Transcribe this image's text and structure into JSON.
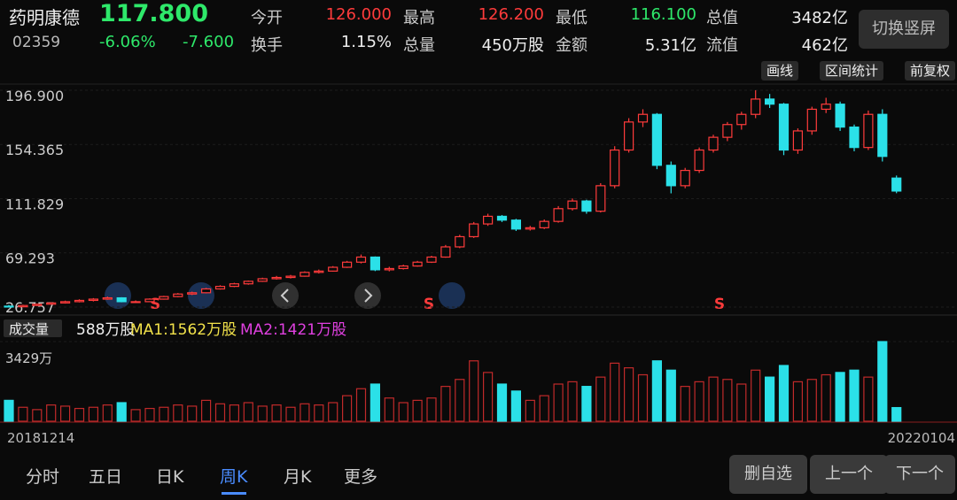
{
  "header": {
    "name": "药明康德",
    "price": "117.800",
    "code": "02359",
    "change_pct": "-6.06%",
    "change": "-7.600",
    "stats": [
      {
        "label": "今开",
        "value": "126.000"
      },
      {
        "label": "最高",
        "value": "126.200"
      },
      {
        "label": "最低",
        "value": "116.100"
      },
      {
        "label": "总值",
        "value": "3482亿"
      },
      {
        "label": "换手",
        "value": "1.15%"
      },
      {
        "label": "总量",
        "value": "450万股"
      },
      {
        "label": "金额",
        "value": "5.31亿"
      },
      {
        "label": "流值",
        "value": "462亿"
      }
    ],
    "button": "切换竖屏"
  },
  "toolbar": [
    "画线",
    "区间统计",
    "前复权"
  ],
  "chart_data": {
    "type": "candlestick",
    "up_color": "#ff3b3b",
    "down_color": "#2be0e8",
    "ylim": [
      26.757,
      196.9
    ],
    "yticks": [
      {
        "value": 26.757,
        "label": "26.757"
      },
      {
        "value": 69.293,
        "label": "69.293"
      },
      {
        "value": 111.829,
        "label": "111.829"
      },
      {
        "value": 154.365,
        "label": "154.365"
      },
      {
        "value": 196.9,
        "label": "196.900"
      }
    ],
    "x_labels": [
      "20181214",
      "20220104"
    ],
    "annotations": [
      "S",
      "S",
      "S"
    ],
    "ohlc": [
      [
        27.5,
        28.5,
        26.8,
        27
      ],
      [
        27,
        28.6,
        26.9,
        28
      ],
      [
        28,
        29.5,
        27.5,
        29
      ],
      [
        29,
        30.6,
        28.5,
        30
      ],
      [
        30,
        31.8,
        29.5,
        31
      ],
      [
        31,
        32.9,
        30.4,
        32
      ],
      [
        32,
        33.8,
        31.2,
        33
      ],
      [
        33,
        35,
        32.5,
        34
      ],
      [
        34,
        34.5,
        30.5,
        31
      ],
      [
        31,
        32,
        30,
        31
      ],
      [
        31,
        33.6,
        30.8,
        33
      ],
      [
        33,
        35.6,
        32.6,
        35
      ],
      [
        35,
        37.8,
        34.5,
        37
      ],
      [
        37,
        38.9,
        36.2,
        38
      ],
      [
        38,
        41.8,
        37.5,
        41
      ],
      [
        41,
        43.9,
        40.5,
        43
      ],
      [
        43,
        45.8,
        42.4,
        45
      ],
      [
        45,
        47.6,
        44.3,
        47
      ],
      [
        47,
        49.8,
        46.5,
        49
      ],
      [
        49,
        51.2,
        48.3,
        50
      ],
      [
        50,
        52,
        49.2,
        51
      ],
      [
        51,
        54.8,
        50.6,
        54
      ],
      [
        54,
        56.2,
        53.1,
        55
      ],
      [
        55,
        58.9,
        54.6,
        58
      ],
      [
        58,
        63,
        57.5,
        62
      ],
      [
        62,
        68,
        61,
        66
      ],
      [
        66,
        66.5,
        55,
        56
      ],
      [
        56,
        58.4,
        54.8,
        57
      ],
      [
        57,
        60,
        56.2,
        59
      ],
      [
        59,
        63,
        58.5,
        62
      ],
      [
        62,
        67,
        61.4,
        66
      ],
      [
        66,
        75.5,
        65.5,
        74
      ],
      [
        74,
        83.5,
        73,
        82
      ],
      [
        82,
        93.5,
        81,
        92
      ],
      [
        92,
        100,
        90.5,
        98
      ],
      [
        98,
        99,
        93.5,
        95
      ],
      [
        95,
        96,
        86.5,
        88
      ],
      [
        88,
        90.5,
        86.8,
        89
      ],
      [
        89,
        95.5,
        88,
        94
      ],
      [
        94,
        106,
        93,
        104
      ],
      [
        104,
        112,
        102.5,
        110
      ],
      [
        110,
        111,
        100,
        102
      ],
      [
        102,
        124,
        101,
        122
      ],
      [
        122,
        153,
        120,
        150
      ],
      [
        150,
        175,
        148,
        172
      ],
      [
        172,
        182,
        168,
        178
      ],
      [
        178,
        179,
        135,
        138
      ],
      [
        138,
        141,
        116,
        122
      ],
      [
        122,
        136,
        120,
        134
      ],
      [
        134,
        152,
        132,
        150
      ],
      [
        150,
        162,
        148,
        160
      ],
      [
        160,
        172,
        157,
        170
      ],
      [
        170,
        180,
        166,
        178
      ],
      [
        178,
        196.9,
        175,
        190
      ],
      [
        190,
        194,
        183,
        186
      ],
      [
        186,
        187,
        146,
        150
      ],
      [
        150,
        167,
        147,
        165
      ],
      [
        165,
        184,
        162,
        182
      ],
      [
        182,
        191,
        179,
        186
      ],
      [
        186,
        188,
        165,
        168
      ],
      [
        168,
        170,
        149,
        152
      ],
      [
        152,
        181,
        150,
        178
      ],
      [
        178,
        182,
        141,
        145
      ],
      [
        128,
        130,
        116.1,
        117.8
      ]
    ],
    "volume": {
      "title": "成交量",
      "current": "588万股",
      "ma1": "MA1:1562万股",
      "ma2": "MA2:1421万股",
      "ylim": [
        0,
        3429
      ],
      "yticks": [
        {
          "value": 3429,
          "label": "3429万"
        }
      ],
      "values": [
        900,
        600,
        500,
        700,
        650,
        550,
        600,
        700,
        800,
        500,
        550,
        600,
        700,
        650,
        900,
        750,
        700,
        800,
        650,
        700,
        600,
        750,
        700,
        800,
        1100,
        1400,
        1600,
        1000,
        800,
        900,
        1000,
        1500,
        1800,
        2600,
        2100,
        1600,
        1300,
        900,
        1100,
        1600,
        1700,
        1500,
        1900,
        2500,
        2300,
        2000,
        2600,
        2200,
        1500,
        1700,
        1900,
        1800,
        1600,
        2200,
        1900,
        2400,
        1700,
        1800,
        2000,
        2100,
        2200,
        1900,
        3429,
        588
      ]
    }
  },
  "tabs": [
    "分时",
    "五日",
    "日K",
    "周K",
    "月K",
    "更多"
  ],
  "buttons": [
    "删自选",
    "上一个",
    "下一个"
  ]
}
